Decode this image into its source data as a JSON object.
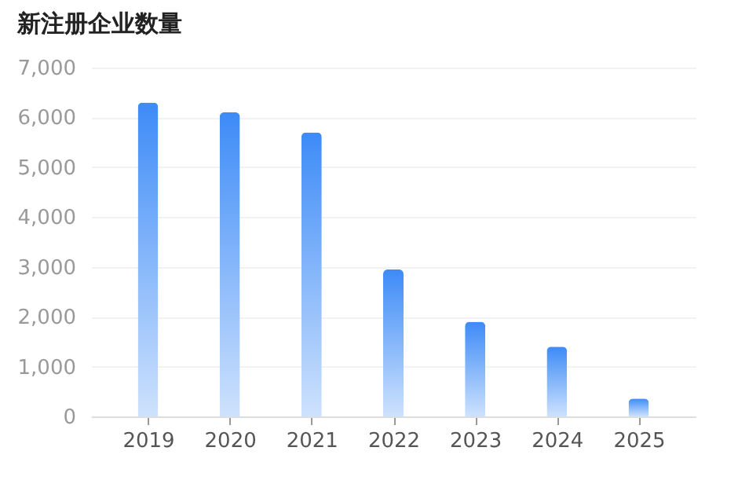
{
  "chart_data": {
    "type": "bar",
    "title": "新注册企业数量",
    "categories": [
      "2019",
      "2020",
      "2021",
      "2022",
      "2023",
      "2024",
      "2025"
    ],
    "values": [
      6300,
      6100,
      5700,
      2950,
      1900,
      1400,
      360
    ],
    "color": "#3d8bf7",
    "ylim": [
      0,
      7000
    ],
    "yticks": [
      {
        "value": 0,
        "label": "0"
      },
      {
        "value": 1000,
        "label": "1,000"
      },
      {
        "value": 2000,
        "label": "2,000"
      },
      {
        "value": 3000,
        "label": "3,000"
      },
      {
        "value": 4000,
        "label": "4,000"
      },
      {
        "value": 5000,
        "label": "5,000"
      },
      {
        "value": 6000,
        "label": "6,000"
      },
      {
        "value": 7000,
        "label": "7,000"
      }
    ],
    "grid": "y"
  }
}
